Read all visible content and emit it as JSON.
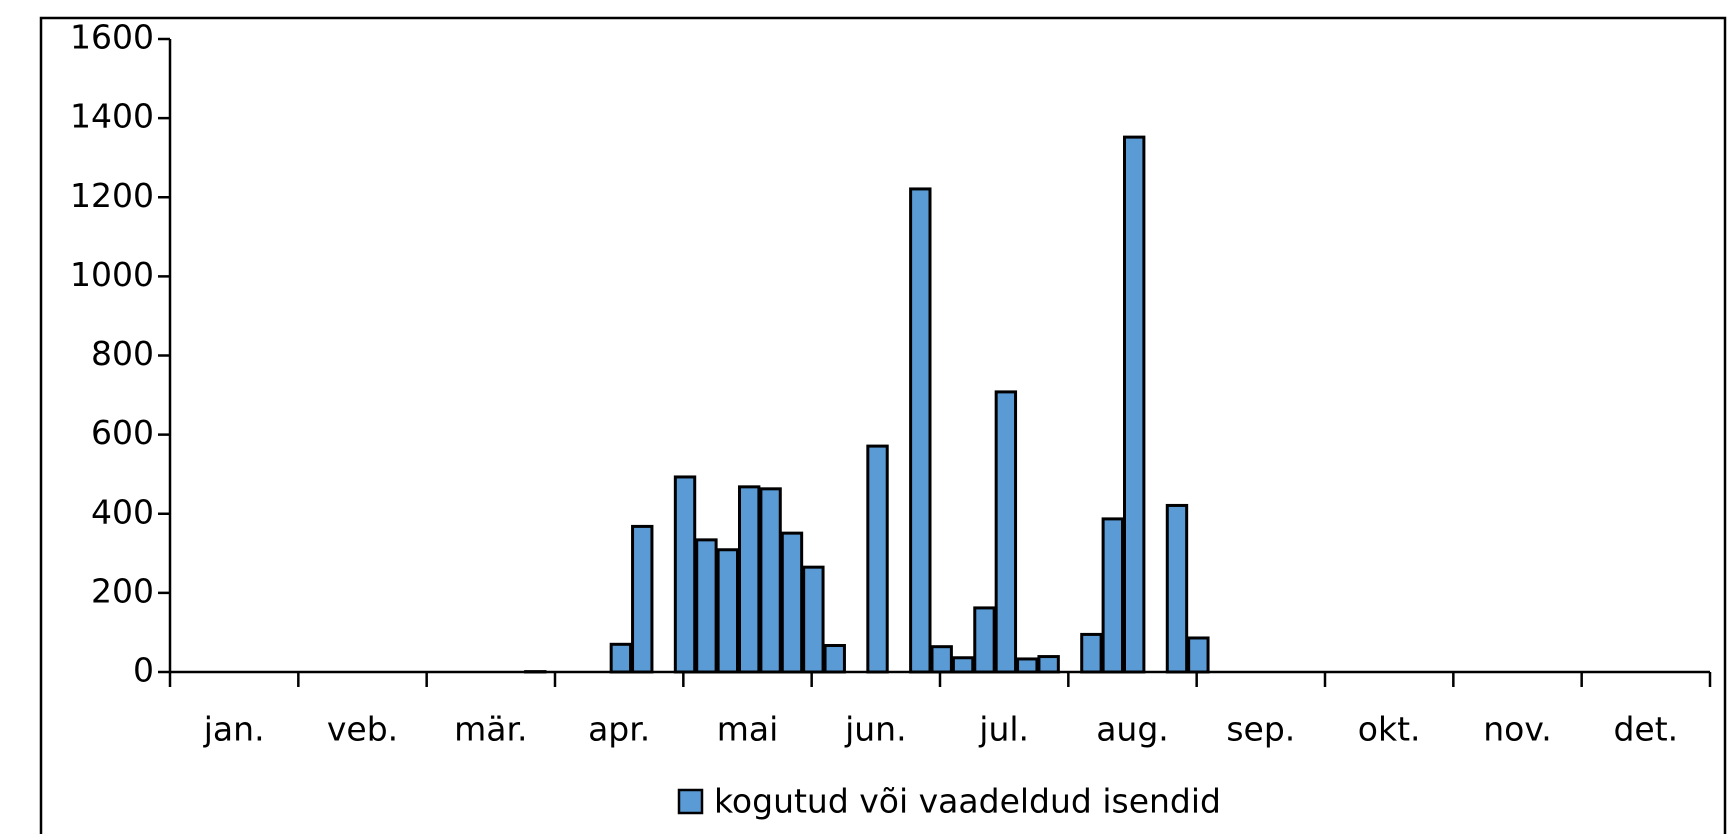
{
  "chart_data": {
    "type": "bar",
    "categories": [
      "jan.",
      "veb.",
      "mär.",
      "apr.",
      "mai",
      "jun.",
      "jul.",
      "aug.",
      "sep.",
      "okt.",
      "nov.",
      "det."
    ],
    "series": [
      {
        "name": "kogutud või vaadeldud isendid",
        "color": "#5b9bd5",
        "values": [
          [
            0,
            0,
            0,
            0,
            0,
            0
          ],
          [
            0,
            0,
            0,
            0,
            0,
            0
          ],
          [
            0,
            0,
            0,
            0,
            0,
            1
          ],
          [
            0,
            0,
            0,
            70,
            368,
            0
          ],
          [
            493,
            334,
            309,
            468,
            463,
            351
          ],
          [
            265,
            67,
            0,
            571,
            0,
            1221
          ],
          [
            64,
            36,
            162,
            708,
            33,
            39
          ],
          [
            0,
            95,
            387,
            1352,
            0,
            421
          ],
          [
            86,
            0,
            0,
            0,
            0,
            0
          ],
          [
            0,
            0,
            0,
            0,
            0,
            0
          ],
          [
            0,
            0,
            0,
            0,
            0,
            0
          ],
          [
            0,
            0,
            0,
            0,
            0,
            0
          ]
        ]
      }
    ],
    "ylim": [
      0,
      1600
    ],
    "yticks": [
      0,
      200,
      400,
      600,
      800,
      1000,
      1200,
      1400,
      1600
    ],
    "legend": "bottom"
  }
}
